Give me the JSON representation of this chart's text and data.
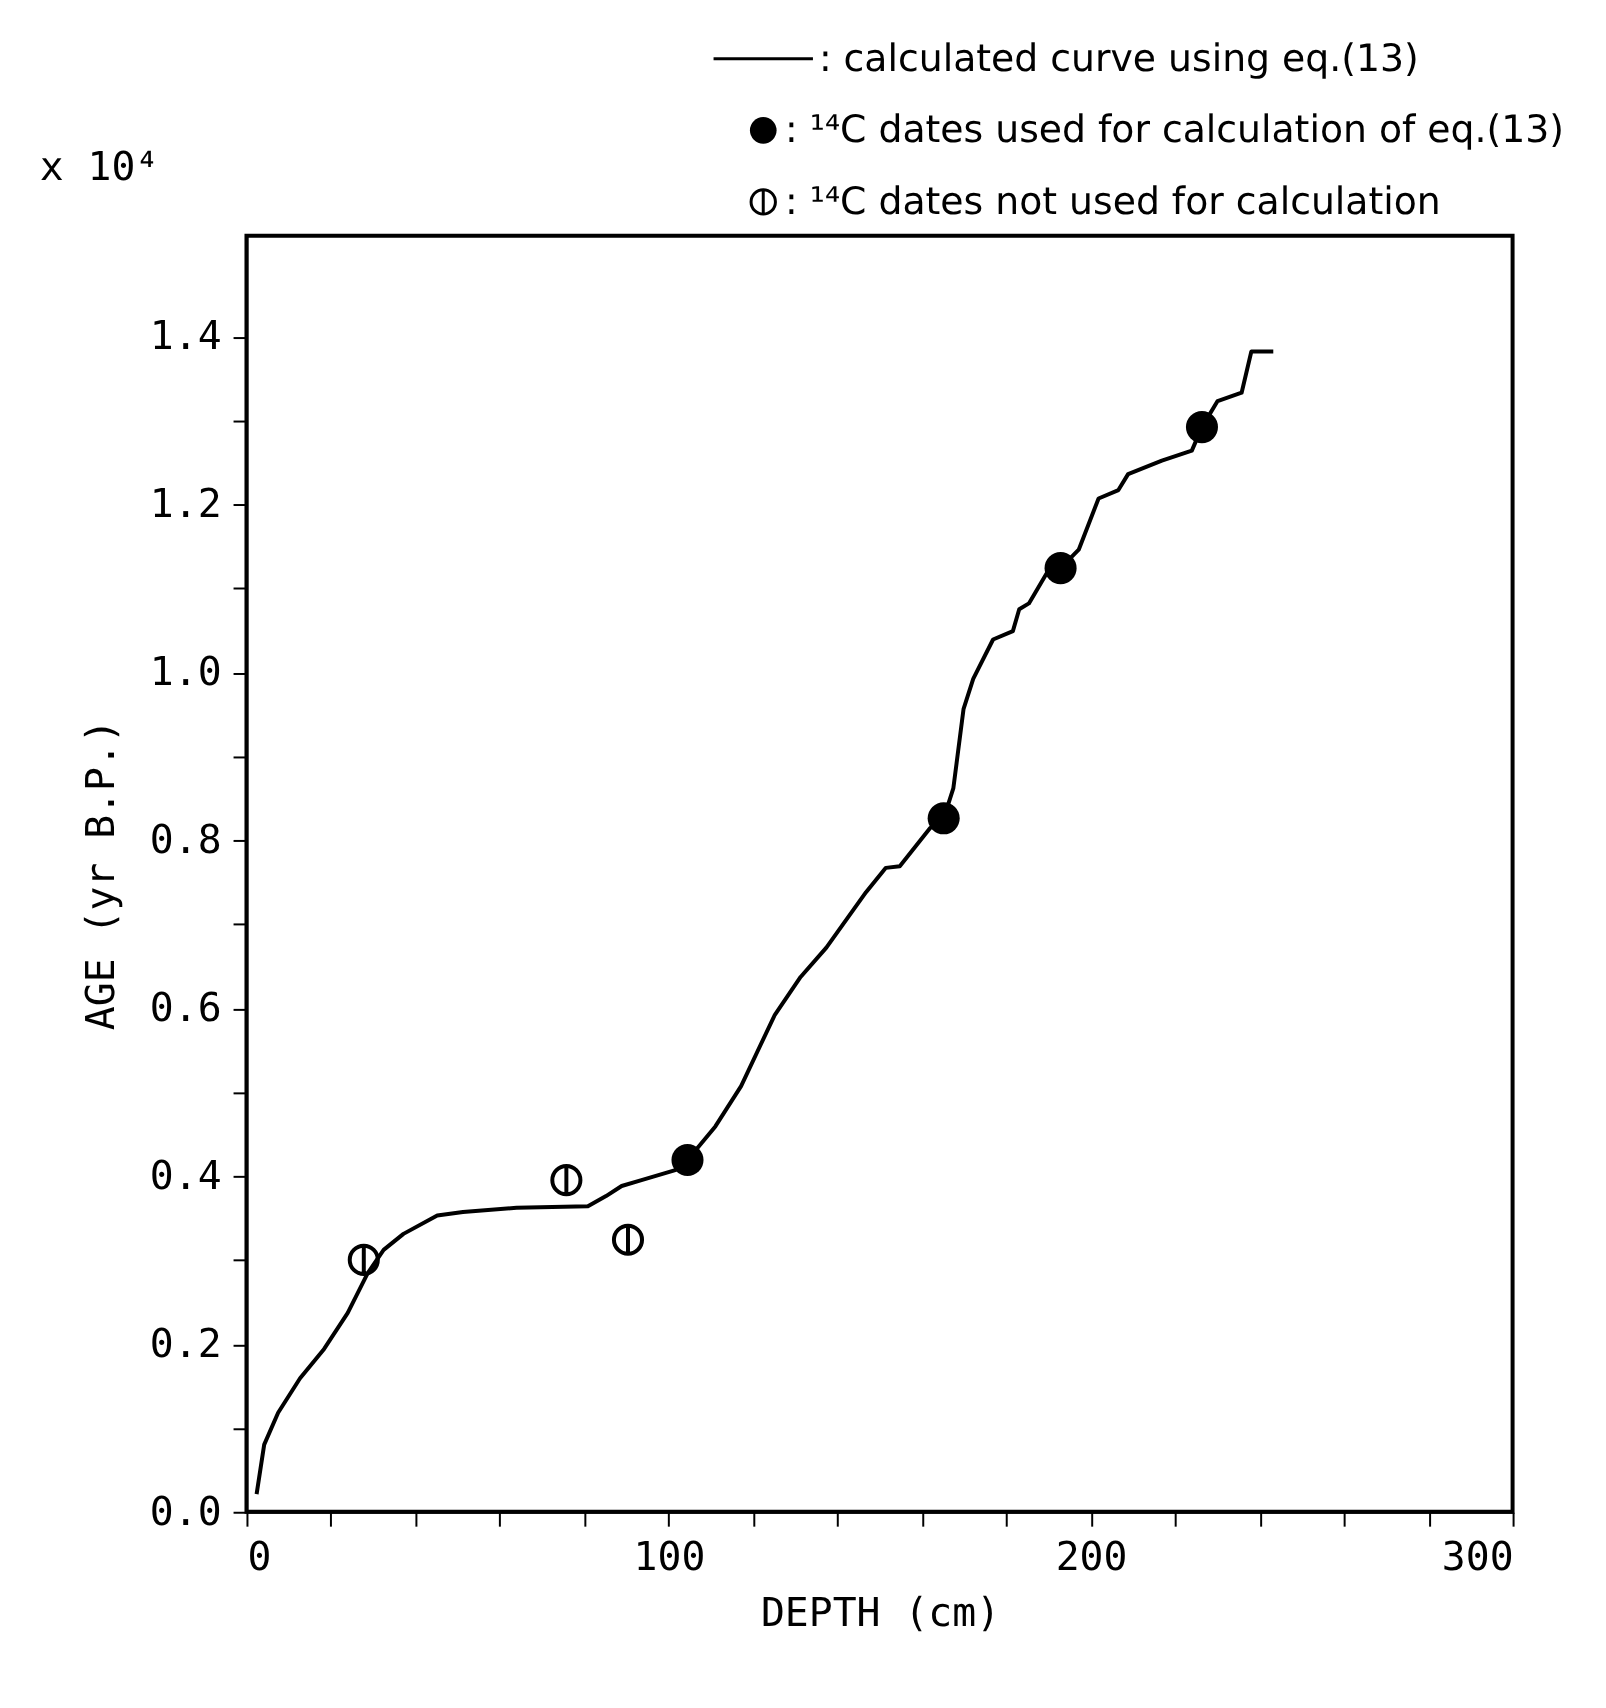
{
  "chart_data": {
    "type": "line",
    "xlabel": "DEPTH (cm)",
    "ylabel": "AGE (yr B.P.)",
    "annotations": [
      "x 10⁴"
    ],
    "xlim": [
      0,
      300
    ],
    "ylim": [
      0,
      1.52
    ],
    "xticks": [
      0,
      {
        "value": 20,
        "label": null
      },
      {
        "value": 40,
        "label": null
      },
      {
        "value": 60,
        "label": null
      },
      {
        "value": 80,
        "label": null
      },
      100,
      {
        "value": 120,
        "label": null
      },
      {
        "value": 140,
        "label": null
      },
      {
        "value": 160,
        "label": null
      },
      {
        "value": 180,
        "label": null
      },
      200,
      {
        "value": 220,
        "label": null
      },
      {
        "value": 240,
        "label": null
      },
      {
        "value": 260,
        "label": null
      },
      {
        "value": 280,
        "label": null
      },
      300
    ],
    "yticks": [
      {
        "value": 0,
        "label": "0.0"
      },
      {
        "value": 0.1,
        "label": null
      },
      {
        "value": 0.2,
        "label": "0.2"
      },
      {
        "value": 0.3,
        "label": null
      },
      {
        "value": 0.4,
        "label": "0.4"
      },
      {
        "value": 0.5,
        "label": null
      },
      {
        "value": 0.6,
        "label": "0.6"
      },
      {
        "value": 0.7,
        "label": null
      },
      {
        "value": 0.8,
        "label": "0.8"
      },
      {
        "value": 0.9,
        "label": null
      },
      {
        "value": 1.0,
        "label": "1.0"
      },
      {
        "value": 1.1,
        "label": null
      },
      {
        "value": 1.2,
        "label": "1.2"
      },
      {
        "value": 1.3,
        "label": null
      },
      {
        "value": 1.4,
        "label": "1.4"
      }
    ],
    "grid": false,
    "legend": "top",
    "series": [
      {
        "name": ": calculated curve using eq.(13)",
        "color": "#000000",
        "marker": "none",
        "line_style": "solid",
        "x": [
          2.4,
          4.2,
          7.5,
          12.7,
          18.4,
          24.0,
          28.7,
          32.5,
          37.2,
          45.2,
          51.3,
          64.0,
          80.9,
          85.2,
          88.9,
          93.6,
          101.6,
          104.5,
          111.1,
          117.2,
          125.2,
          131.3,
          137.4,
          146.8,
          151.5,
          154.8,
          161.9,
          165.2,
          167.5,
          169.9,
          172.2,
          176.9,
          181.6,
          183.1,
          185.4,
          190.1,
          192.9,
          197.2,
          201.9,
          206.6,
          208.9,
          216.9,
          224.0,
          226.4,
          230.1,
          235.8,
          238.1,
          243.3
        ],
        "values": [
          0.021,
          0.08,
          0.118,
          0.159,
          0.194,
          0.237,
          0.284,
          0.312,
          0.331,
          0.353,
          0.357,
          0.362,
          0.364,
          0.376,
          0.388,
          0.395,
          0.407,
          0.419,
          0.459,
          0.507,
          0.592,
          0.637,
          0.672,
          0.738,
          0.767,
          0.769,
          0.814,
          0.826,
          0.862,
          0.956,
          0.992,
          1.039,
          1.049,
          1.075,
          1.082,
          1.122,
          1.124,
          1.146,
          1.207,
          1.217,
          1.236,
          1.252,
          1.264,
          1.292,
          1.323,
          1.333,
          1.382,
          1.382
        ]
      },
      {
        "name": ": ¹⁴C dates used for calculation of eq.(13)",
        "type": "scatter",
        "color": "#000000",
        "marker": "circle",
        "x": [
          104.5,
          165.2,
          192.9,
          226.4
        ],
        "values": [
          0.419,
          0.826,
          1.124,
          1.292
        ]
      },
      {
        "name": ": ¹⁴C dates not used for calculation",
        "type": "scatter",
        "color": "#000000",
        "marker": "cross",
        "x": [
          27.8,
          75.8,
          90.4
        ],
        "values": [
          0.3,
          0.395,
          0.324
        ]
      }
    ]
  }
}
